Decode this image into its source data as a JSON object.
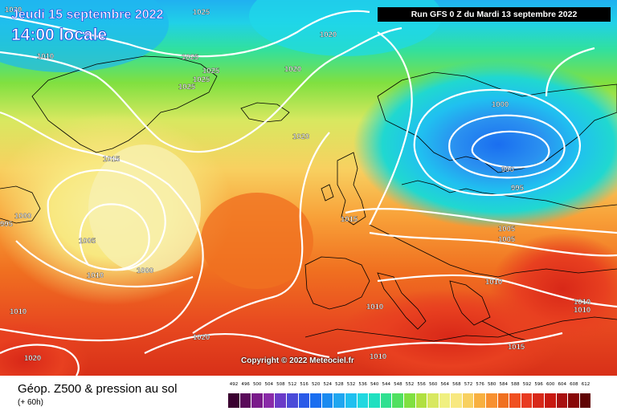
{
  "header": {
    "date": "Jeudi 15 septembre 2022",
    "time": "14:00 locale",
    "run": "Run GFS 0 Z du Mardi 13 septembre 2022"
  },
  "copyright": "Copyright © 2022 Meteociel.fr",
  "legend": {
    "title": "Géop. Z500 & pression au sol",
    "subtitle": "(+ 60h)",
    "levels": [
      "492",
      "496",
      "500",
      "504",
      "508",
      "512",
      "516",
      "520",
      "524",
      "528",
      "532",
      "536",
      "540",
      "544",
      "548",
      "552",
      "556",
      "560",
      "564",
      "568",
      "572",
      "576",
      "580",
      "584",
      "588",
      "592",
      "596",
      "600",
      "604",
      "608",
      "612"
    ],
    "colors": [
      "#3a0030",
      "#5a0a5a",
      "#7a1a8a",
      "#8a2aa8",
      "#6a3ac8",
      "#4a4ad8",
      "#2a5ae8",
      "#1a6ef0",
      "#1a8af0",
      "#20a6f0",
      "#20c0f0",
      "#20d8e0",
      "#20e0c0",
      "#30e090",
      "#50e060",
      "#80e040",
      "#b0e040",
      "#d8e860",
      "#f0f080",
      "#f8e880",
      "#f8d060",
      "#f8b040",
      "#f89030",
      "#f07020",
      "#f05020",
      "#e83a20",
      "#d82818",
      "#c81810",
      "#a81010",
      "#880808",
      "#600404"
    ]
  },
  "isobars": [
    {
      "label": "1020"
    },
    {
      "label": "1025"
    },
    {
      "label": "1020"
    },
    {
      "label": "1010"
    },
    {
      "label": "1025"
    },
    {
      "label": "1025"
    },
    {
      "label": "1025"
    },
    {
      "label": "1025"
    },
    {
      "label": "1020"
    },
    {
      "label": "1020"
    },
    {
      "label": "1015"
    },
    {
      "label": "1000"
    },
    {
      "label": "995"
    },
    {
      "label": "1000"
    },
    {
      "label": "1005"
    },
    {
      "label": "1010"
    },
    {
      "label": "1000"
    },
    {
      "label": "1015"
    },
    {
      "label": "1005"
    },
    {
      "label": "1005"
    },
    {
      "label": "990"
    },
    {
      "label": "995"
    },
    {
      "label": "1010"
    },
    {
      "label": "1010"
    },
    {
      "label": "1010"
    },
    {
      "label": "1010"
    },
    {
      "label": "1010"
    },
    {
      "label": "1020"
    },
    {
      "label": "1020"
    },
    {
      "label": "1010"
    },
    {
      "label": "1015"
    }
  ]
}
